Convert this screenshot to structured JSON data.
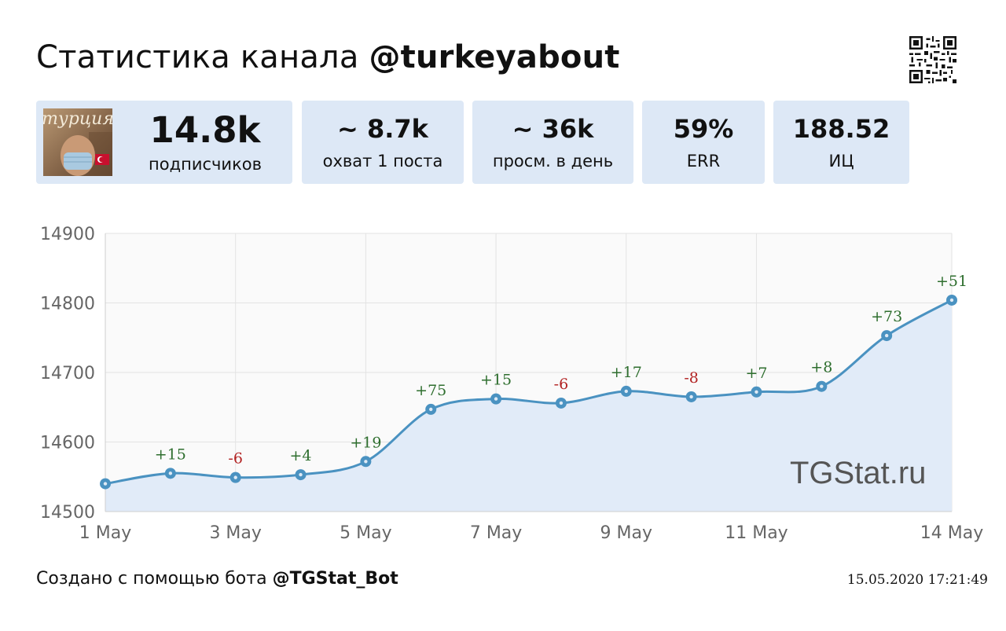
{
  "header": {
    "title_prefix": "Статистика канала",
    "channel_handle": "@turkeyabout"
  },
  "avatar": {
    "text": "турция",
    "icon": "channel-avatar-image"
  },
  "stats": [
    {
      "value": "14.8k",
      "label": "подписчиков"
    },
    {
      "value": "~ 8.7k",
      "label": "охват 1 поста"
    },
    {
      "value": "~ 36k",
      "label": "просм. в день"
    },
    {
      "value": "59%",
      "label": "ERR"
    },
    {
      "value": "188.52",
      "label": "ИЦ"
    }
  ],
  "watermark": "TGStat.ru",
  "footer": {
    "created_prefix": "Создано с помощью бота",
    "bot_handle": "@TGStat_Bot",
    "timestamp": "15.05.2020 17:21:49"
  },
  "colors": {
    "line": "#4a92c1",
    "area_fill": "#e1ebf8",
    "card_bg": "#dde8f6",
    "positive": "#2e6e2e",
    "negative": "#b22222"
  },
  "chart_data": {
    "type": "area",
    "x": [
      "1 May",
      "2 May",
      "3 May",
      "4 May",
      "5 May",
      "6 May",
      "7 May",
      "8 May",
      "9 May",
      "10 May",
      "11 May",
      "12 May",
      "13 May",
      "14 May"
    ],
    "values": [
      14540,
      14555,
      14549,
      14553,
      14572,
      14647,
      14662,
      14656,
      14673,
      14665,
      14672,
      14680,
      14753,
      14804
    ],
    "point_labels": [
      "",
      "+15",
      "-6",
      "+4",
      "+19",
      "+75",
      "+15",
      "-6",
      "+17",
      "-8",
      "+7",
      "+8",
      "+73",
      "+51"
    ],
    "x_tick_labels": [
      "1 May",
      "",
      "3 May",
      "",
      "5 May",
      "",
      "7 May",
      "",
      "9 May",
      "",
      "11 May",
      "",
      "",
      "14 May"
    ],
    "y_ticks": [
      14500,
      14600,
      14700,
      14800,
      14900
    ],
    "ylim": [
      14500,
      14900
    ],
    "grid": true,
    "legend": "none"
  }
}
